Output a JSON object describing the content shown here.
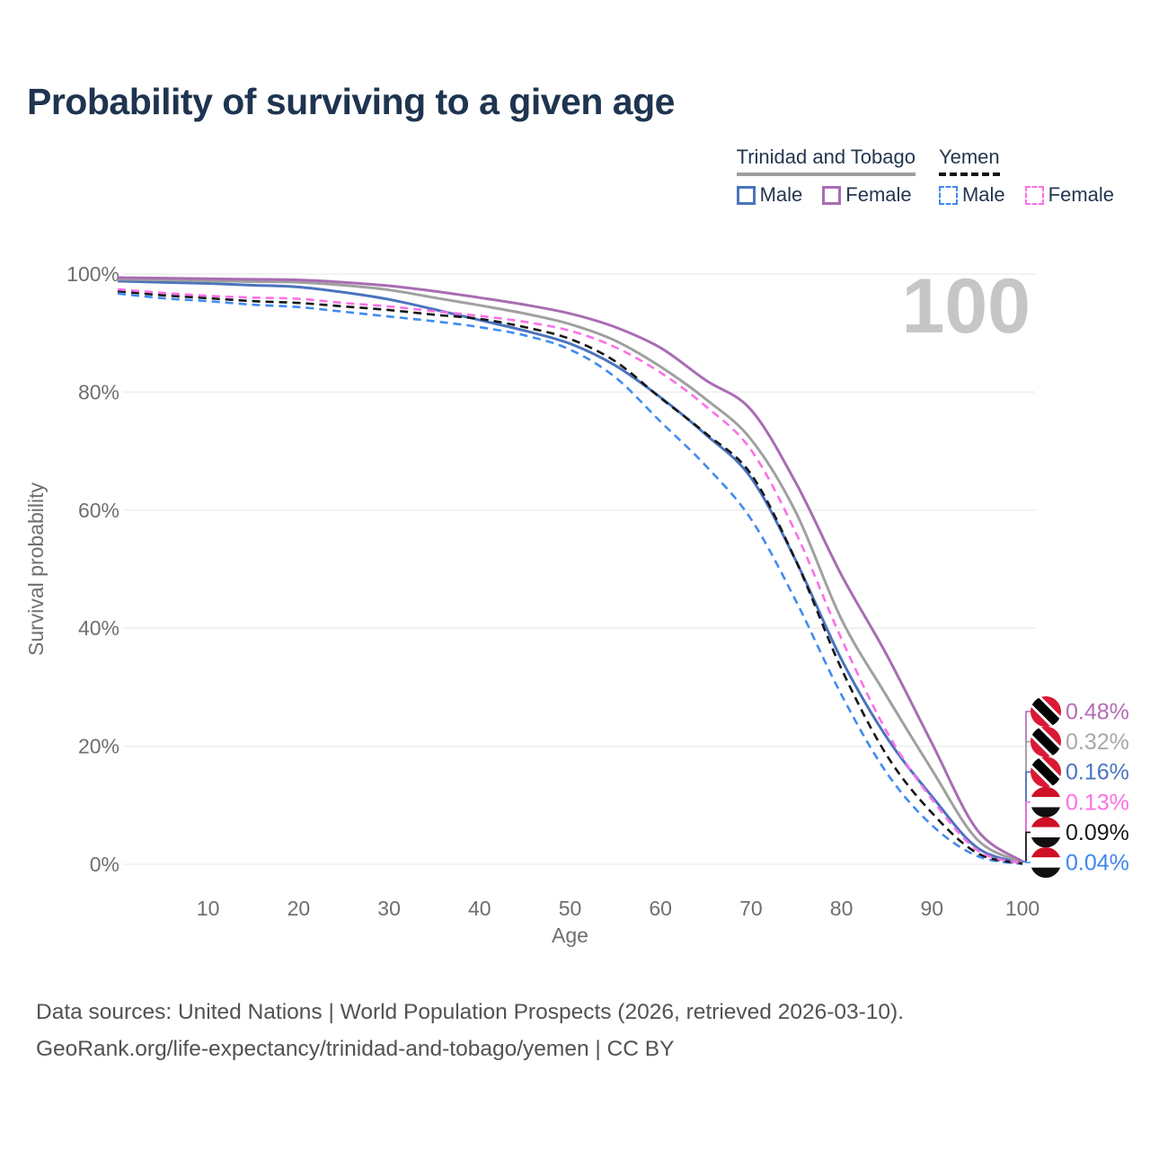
{
  "page": {
    "title": "Probability of surviving to a given age",
    "footer_line1": "Data sources: United Nations | World Population Prospects (2026, retrieved 2026-03-10).",
    "footer_line2": "GeoRank.org/life-expectancy/trinidad-and-tobago/yemen | CC BY"
  },
  "legend": {
    "groups": [
      {
        "name": "Trinidad and Tobago",
        "underline_style": "solid",
        "underline_color": "#9e9e9e",
        "items": [
          {
            "label": "Male",
            "color": "#4a73bd",
            "dash": false
          },
          {
            "label": "Female",
            "color": "#a96cb3",
            "dash": false
          }
        ]
      },
      {
        "name": "Yemen",
        "underline_style": "dashed",
        "underline_color": "#141414",
        "items": [
          {
            "label": "Male",
            "color": "#418bf0",
            "dash": true
          },
          {
            "label": "Female",
            "color": "#fb70e7",
            "dash": true
          }
        ]
      }
    ]
  },
  "chart_data": {
    "type": "line",
    "title": "Probability of surviving to a given age",
    "xlabel": "Age",
    "ylabel": "Survival probability",
    "xlim": [
      0,
      100
    ],
    "ylim": [
      0,
      100
    ],
    "grid": true,
    "x_ticks": [
      10,
      20,
      30,
      40,
      50,
      60,
      70,
      80,
      90,
      100
    ],
    "y_ticks": [
      {
        "v": 0,
        "label": "0%"
      },
      {
        "v": 20,
        "label": "20%"
      },
      {
        "v": 40,
        "label": "40%"
      },
      {
        "v": 60,
        "label": "60%"
      },
      {
        "v": 80,
        "label": "80%"
      },
      {
        "v": 100,
        "label": "100%"
      }
    ],
    "annotation": {
      "text": "100",
      "color": "#c6c6c6"
    },
    "x": [
      0,
      5,
      10,
      15,
      20,
      25,
      30,
      35,
      40,
      45,
      50,
      55,
      60,
      65,
      70,
      75,
      80,
      85,
      90,
      95,
      100
    ],
    "series": [
      {
        "name": "Trinidad and Tobago Female",
        "color": "#a96cb3",
        "dash": false,
        "values": [
          99.4,
          99.3,
          99.2,
          99.1,
          99.0,
          98.6,
          98.0,
          97.1,
          96.0,
          94.8,
          93.3,
          91.0,
          87.5,
          82.0,
          77.0,
          64.5,
          49.0,
          35.5,
          20.5,
          5.8,
          0.48
        ],
        "end_label": {
          "value": "0.48%",
          "text_color": "#b56cb4",
          "flag": "trinidad-and-tobago"
        }
      },
      {
        "name": "Trinidad and Tobago",
        "color": "#a0a0a0",
        "dash": false,
        "values": [
          99.1,
          99.0,
          98.85,
          98.7,
          98.6,
          98.1,
          97.3,
          96.0,
          94.7,
          93.3,
          91.5,
          88.7,
          84.3,
          78.8,
          72.0,
          59.5,
          41.5,
          28.5,
          16.0,
          4.2,
          0.32
        ],
        "end_label": {
          "value": "0.32%",
          "text_color": "#a8a8a8",
          "flag": "trinidad-and-tobago"
        }
      },
      {
        "name": "Trinidad and Tobago Male",
        "color": "#4a73bd",
        "dash": false,
        "values": [
          98.8,
          98.6,
          98.4,
          98.1,
          97.8,
          96.9,
          95.7,
          94.0,
          92.2,
          90.4,
          88.2,
          84.5,
          79.1,
          72.8,
          65.5,
          51.3,
          34.7,
          21.5,
          11.5,
          2.8,
          0.16
        ],
        "end_label": {
          "value": "0.16%",
          "text_color": "#4a73bd",
          "flag": "trinidad-and-tobago"
        }
      },
      {
        "name": "Yemen Female",
        "color": "#fb70e7",
        "dash": true,
        "values": [
          97.4,
          96.8,
          96.3,
          96.0,
          95.8,
          95.1,
          94.5,
          93.7,
          92.9,
          91.9,
          90.4,
          87.6,
          83.3,
          77.6,
          70.2,
          56.0,
          38.2,
          22.5,
          11.0,
          2.4,
          0.13
        ],
        "end_label": {
          "value": "0.13%",
          "text_color": "#fb70e7",
          "flag": "yemen"
        }
      },
      {
        "name": "Yemen",
        "color": "#161616",
        "dash": true,
        "values": [
          97.1,
          96.4,
          95.9,
          95.4,
          95.1,
          94.5,
          93.9,
          93.1,
          92.4,
          91.0,
          89.0,
          85.2,
          79.0,
          73.0,
          66.1,
          51.3,
          33.1,
          18.5,
          8.7,
          1.9,
          0.09
        ],
        "end_label": {
          "value": "0.09%",
          "text_color": "#1a1a1a",
          "flag": "yemen"
        }
      },
      {
        "name": "Yemen Male",
        "color": "#418bf0",
        "dash": true,
        "values": [
          96.7,
          95.9,
          95.4,
          94.8,
          94.4,
          93.6,
          92.8,
          92.0,
          91.0,
          89.6,
          87.2,
          82.5,
          75.0,
          67.5,
          58.5,
          44.5,
          28.7,
          15.5,
          6.6,
          1.4,
          0.04
        ],
        "end_label": {
          "value": "0.04%",
          "text_color": "#3f86ee",
          "flag": "yemen"
        }
      }
    ]
  }
}
